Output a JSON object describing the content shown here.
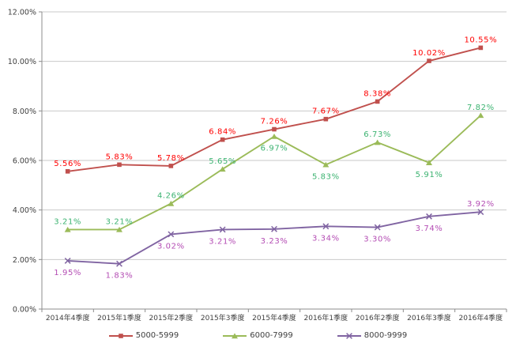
{
  "chart_data": {
    "type": "line",
    "title": "",
    "xlabel": "",
    "ylabel": "",
    "ylim": [
      0,
      12
    ],
    "grid": true,
    "legend_position": "bottom",
    "grid_color": "#C9C9C9",
    "axis_color": "#8C8C8C",
    "tick_text_color": "#404040",
    "background_color": "#FFFFFF",
    "y_ticks": [
      "0.00%",
      "2.00%",
      "4.00%",
      "6.00%",
      "8.00%",
      "10.00%",
      "12.00%"
    ],
    "categories": [
      "2014年4季度",
      "2015年1季度",
      "2015年2季度",
      "2015年3季度",
      "2015年4季度",
      "2016年1季度",
      "2016年2季度",
      "2016年3季度",
      "2016年4季度"
    ],
    "series": [
      {
        "name": "5000-5999",
        "marker": "square",
        "color": "#C0504D",
        "label_color": "#FF0000",
        "values": [
          5.56,
          5.83,
          5.78,
          6.84,
          7.26,
          7.67,
          8.38,
          10.02,
          10.55
        ],
        "labels": [
          "5.56%",
          "5.83%",
          "5.78%",
          "6.84%",
          "7.26%",
          "7.67%",
          "8.38%",
          "10.02%",
          "10.55%"
        ]
      },
      {
        "name": "6000-7999",
        "marker": "triangle",
        "color": "#9BBB59",
        "label_color": "#3CB371",
        "values": [
          3.21,
          3.21,
          4.26,
          5.65,
          6.97,
          5.83,
          6.73,
          5.91,
          7.82
        ],
        "labels": [
          "3.21%",
          "3.21%",
          "4.26%",
          "5.65%",
          "6.97%",
          "5.83%",
          "6.73%",
          "5.91%",
          "7.82%"
        ]
      },
      {
        "name": "8000-9999",
        "marker": "x",
        "color": "#8064A2",
        "label_color": "#B44DB4",
        "values": [
          1.95,
          1.83,
          3.02,
          3.21,
          3.23,
          3.34,
          3.3,
          3.74,
          3.92
        ],
        "labels": [
          "1.95%",
          "1.83%",
          "3.02%",
          "3.21%",
          "3.23%",
          "3.34%",
          "3.30%",
          "3.74%",
          "3.92%"
        ]
      }
    ]
  }
}
